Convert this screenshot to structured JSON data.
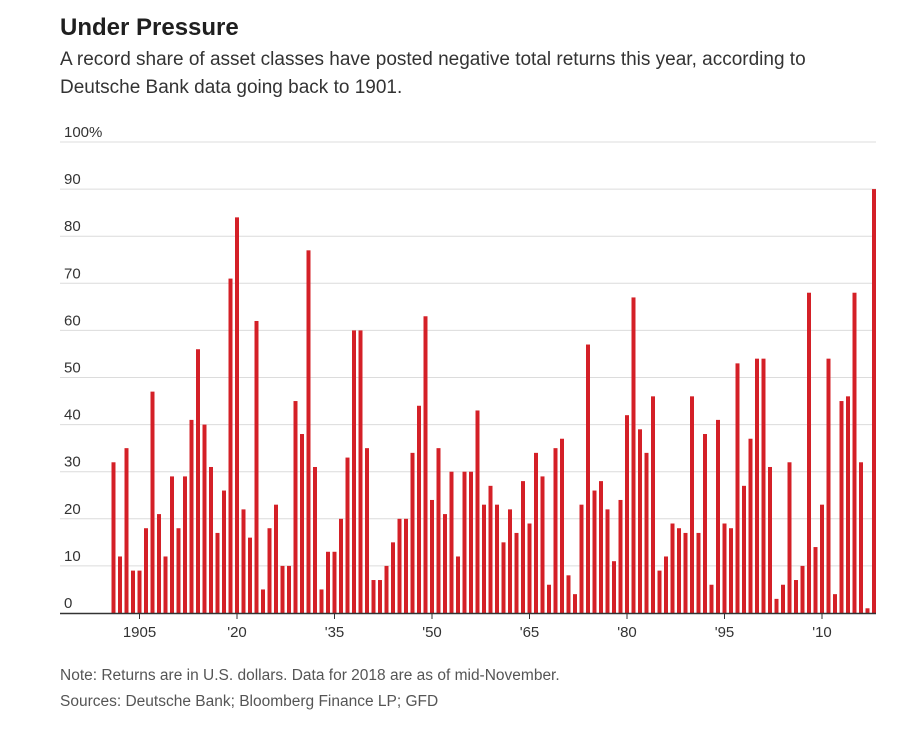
{
  "header": {
    "title": "Under Pressure",
    "subtitle": "A record share of asset classes have posted negative total returns this year, according to Deutsche Bank data going back to 1901."
  },
  "footer": {
    "note": "Note: Returns are in U.S. dollars. Data for 2018 are as of mid-November.",
    "sources": "Sources: Deutsche Bank; Bloomberg Finance LP; GFD"
  },
  "colors": {
    "bar": "#d42027",
    "grid": "#dcdcdc",
    "axis": "#333333"
  },
  "chart_data": {
    "type": "bar",
    "title": "Under Pressure",
    "xlabel": "",
    "ylabel": "",
    "ylim": [
      0,
      100
    ],
    "y_ticks": [
      {
        "value": 0,
        "label": "0"
      },
      {
        "value": 10,
        "label": "10"
      },
      {
        "value": 20,
        "label": "20"
      },
      {
        "value": 30,
        "label": "30"
      },
      {
        "value": 40,
        "label": "40"
      },
      {
        "value": 50,
        "label": "50"
      },
      {
        "value": 60,
        "label": "60"
      },
      {
        "value": 70,
        "label": "70"
      },
      {
        "value": 80,
        "label": "80"
      },
      {
        "value": 90,
        "label": "90"
      },
      {
        "value": 100,
        "label": "100%"
      }
    ],
    "x_ticks": [
      {
        "year": 1905,
        "label": "1905"
      },
      {
        "year": 1920,
        "label": "'20"
      },
      {
        "year": 1935,
        "label": "'35"
      },
      {
        "year": 1950,
        "label": "'50"
      },
      {
        "year": 1965,
        "label": "'65"
      },
      {
        "year": 1980,
        "label": "'80"
      },
      {
        "year": 1995,
        "label": "'95"
      },
      {
        "year": 2010,
        "label": "'10"
      }
    ],
    "grid": true,
    "legend": "none",
    "x": [
      1901,
      1902,
      1903,
      1904,
      1905,
      1906,
      1907,
      1908,
      1909,
      1910,
      1911,
      1912,
      1913,
      1914,
      1915,
      1916,
      1917,
      1918,
      1919,
      1920,
      1921,
      1922,
      1923,
      1924,
      1925,
      1926,
      1927,
      1928,
      1929,
      1930,
      1931,
      1932,
      1933,
      1934,
      1935,
      1936,
      1937,
      1938,
      1939,
      1940,
      1941,
      1942,
      1943,
      1944,
      1945,
      1946,
      1947,
      1948,
      1949,
      1950,
      1951,
      1952,
      1953,
      1954,
      1955,
      1956,
      1957,
      1958,
      1959,
      1960,
      1961,
      1962,
      1963,
      1964,
      1965,
      1966,
      1967,
      1968,
      1969,
      1970,
      1971,
      1972,
      1973,
      1974,
      1975,
      1976,
      1977,
      1978,
      1979,
      1980,
      1981,
      1982,
      1983,
      1984,
      1985,
      1986,
      1987,
      1988,
      1989,
      1990,
      1991,
      1992,
      1993,
      1994,
      1995,
      1996,
      1997,
      1998,
      1999,
      2000,
      2001,
      2002,
      2003,
      2004,
      2005,
      2006,
      2007,
      2008,
      2009,
      2010,
      2011,
      2012,
      2013,
      2014,
      2015,
      2016,
      2017,
      2018
    ],
    "values": [
      32,
      12,
      35,
      9,
      9,
      18,
      47,
      21,
      12,
      29,
      18,
      29,
      41,
      56,
      40,
      31,
      17,
      26,
      71,
      84,
      22,
      16,
      62,
      5,
      18,
      23,
      10,
      10,
      45,
      38,
      77,
      31,
      5,
      13,
      13,
      20,
      33,
      60,
      60,
      35,
      7,
      7,
      10,
      15,
      20,
      20,
      34,
      44,
      63,
      24,
      35,
      21,
      30,
      12,
      30,
      30,
      43,
      23,
      27,
      23,
      15,
      22,
      17,
      28,
      19,
      34,
      29,
      6,
      35,
      37,
      8,
      4,
      23,
      57,
      26,
      28,
      22,
      11,
      24,
      42,
      67,
      39,
      34,
      46,
      9,
      12,
      19,
      18,
      17,
      46,
      17,
      38,
      6,
      41,
      19,
      18,
      53,
      27,
      37,
      54,
      54,
      31,
      3,
      6,
      32,
      7,
      10,
      68,
      14,
      23,
      54,
      4,
      45,
      46,
      68,
      32,
      1,
      90
    ]
  }
}
